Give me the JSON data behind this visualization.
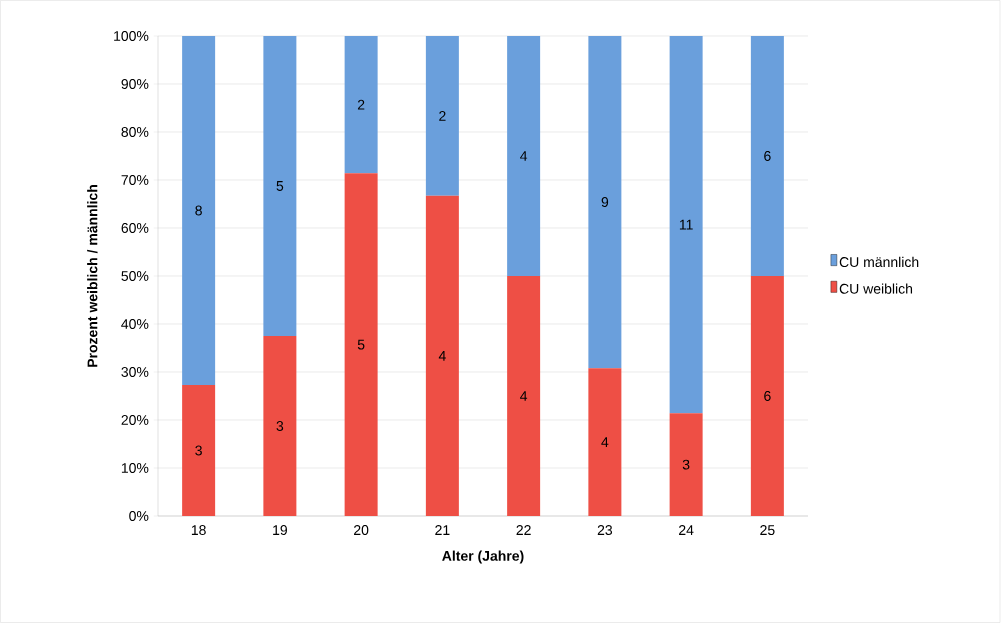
{
  "chart_data": {
    "type": "bar",
    "stacked": true,
    "xlabel": "Alter (Jahre)",
    "ylabel": "Prozent weiblich / männlich",
    "categories": [
      "18",
      "19",
      "20",
      "21",
      "22",
      "23",
      "24",
      "25"
    ],
    "series": [
      {
        "name": "CU weiblich",
        "color": "#ee4f45",
        "values": [
          27.3,
          37.5,
          71.4,
          66.7,
          50,
          30.8,
          21.4,
          50
        ]
      },
      {
        "name": "CU männlich",
        "color": "#6a9fdc",
        "values": [
          72.7,
          62.5,
          28.6,
          33.3,
          50,
          69.2,
          78.6,
          50
        ]
      }
    ],
    "annotations": [
      "3",
      "3",
      "5",
      "4",
      "4",
      "4",
      "3",
      "6",
      "8",
      "5",
      "2",
      "2",
      "4",
      "9",
      "11",
      "6"
    ],
    "ylim": [
      0,
      100
    ],
    "yticks": [
      {
        "value": 0,
        "label": "0%"
      },
      {
        "value": 10,
        "label": "10%"
      },
      {
        "value": 20,
        "label": "20%"
      },
      {
        "value": 30,
        "label": "30%"
      },
      {
        "value": 40,
        "label": "40%"
      },
      {
        "value": 50,
        "label": "50%"
      },
      {
        "value": 60,
        "label": "60%"
      },
      {
        "value": 70,
        "label": "70%"
      },
      {
        "value": 80,
        "label": "80%"
      },
      {
        "value": 90,
        "label": "90%"
      },
      {
        "value": 100,
        "label": "100%"
      }
    ],
    "grid": "y",
    "legend": "right"
  }
}
